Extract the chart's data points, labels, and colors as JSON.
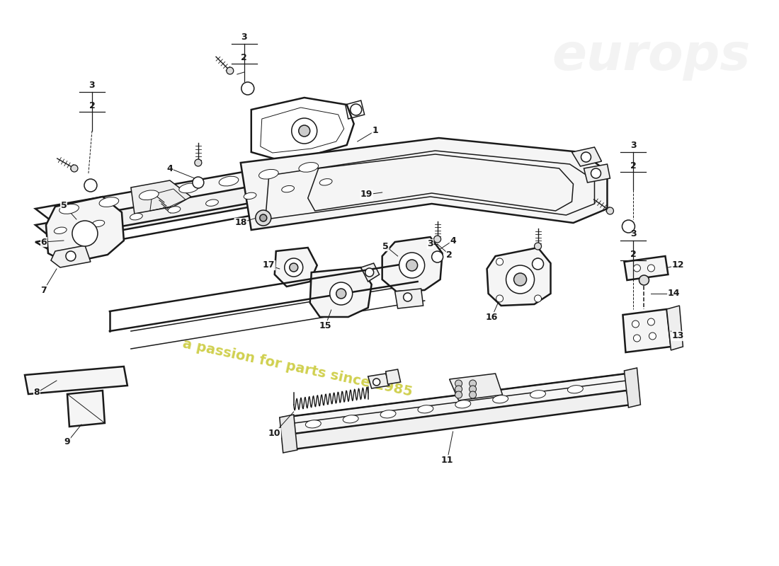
{
  "bg_color": "#ffffff",
  "lc": "#1a1a1a",
  "wm_text": "a passion for parts since 1985",
  "wm_color": "#c8c830",
  "figsize": [
    11.0,
    8.0
  ],
  "dpi": 100
}
